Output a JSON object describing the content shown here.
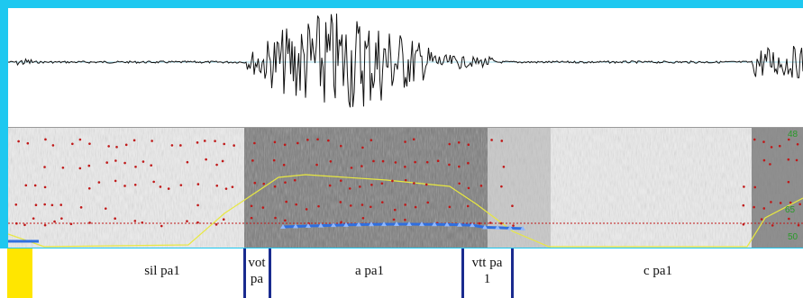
{
  "segments": [
    {
      "label": "sil pa1"
    },
    {
      "label_line1": "vot",
      "label_line2": "pa"
    },
    {
      "label": "a pa1"
    },
    {
      "label_line1": "vtt pa",
      "label_line2": "1"
    },
    {
      "label": "c pa1"
    }
  ],
  "spectrogram": {
    "axis_ticks": [
      "48",
      "65",
      "50"
    ]
  },
  "colors": {
    "frame": "#1ec8f0",
    "boundary": "#1a2b8f",
    "marker": "#ffe600",
    "pitch": "#2f6fe0",
    "formant": "#c01818",
    "intensity": "#e8e840"
  }
}
